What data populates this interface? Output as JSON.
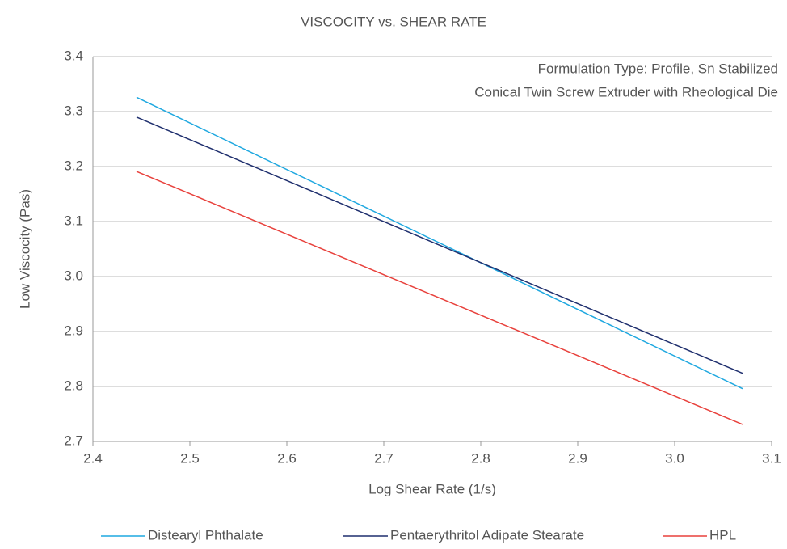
{
  "chart_data": {
    "type": "line",
    "title": "VISCOCITY vs. SHEAR RATE",
    "annotations": [
      "Formulation Type: Profile, Sn Stabilized",
      "Conical Twin Screw Extruder with Rheological Die"
    ],
    "x_label": "Log Shear Rate (1/s)",
    "y_label": "Low Viscocity (Pas)",
    "x": [
      2.445,
      3.07
    ],
    "series": [
      {
        "name": "Distearyl Phthalate",
        "color": "#1fa8e0",
        "values": [
          3.326,
          2.796
        ]
      },
      {
        "name": "Pentaerythritol Adipate Stearate",
        "color": "#1f2f6e",
        "values": [
          3.29,
          2.824
        ]
      },
      {
        "name": "HPL",
        "color": "#e8413c",
        "values": [
          3.191,
          2.731
        ]
      }
    ],
    "xlim": [
      2.4,
      3.1
    ],
    "xticks": [
      2.4,
      2.5,
      2.6,
      2.7,
      2.8,
      2.9,
      {
        "value": 3,
        "label": "3.0"
      },
      3.1
    ],
    "ylim": [
      2.7,
      3.4
    ],
    "yticks": [
      2.7,
      2.8,
      2.9,
      {
        "value": 3,
        "label": "3.0"
      },
      3.1,
      3.2,
      3.3,
      3.4
    ],
    "grid": true,
    "legend": "bottom"
  }
}
